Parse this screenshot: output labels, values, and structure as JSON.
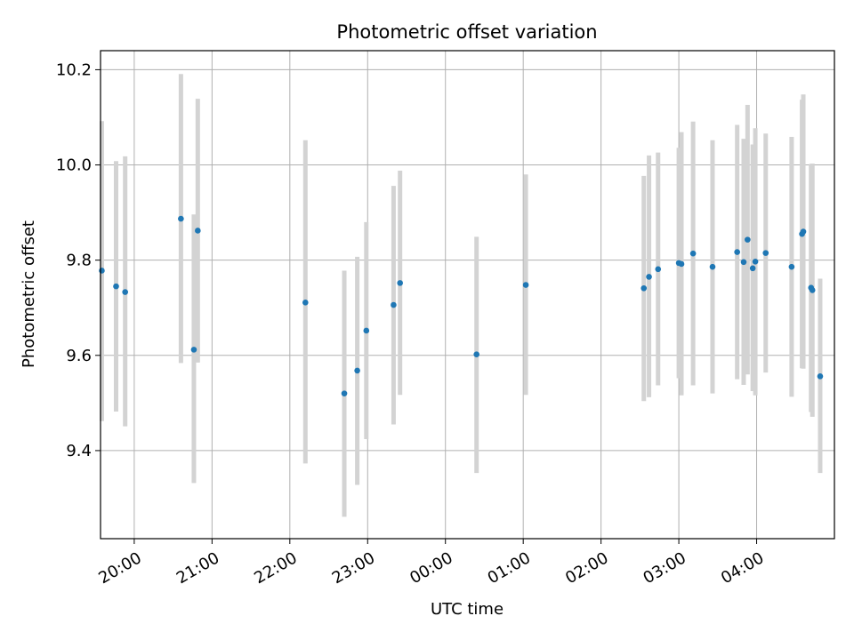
{
  "chart_data": {
    "type": "scatter",
    "title": "Photometric offset variation",
    "xlabel": "UTC time",
    "ylabel": "Photometric offset",
    "x_axis_kind": "time (hours since 19:00 UTC, wrapping past midnight)",
    "xlim": [
      "19:34",
      "05:00"
    ],
    "ylim": [
      9.215,
      10.24
    ],
    "x_ticks": [
      "20:00",
      "21:00",
      "22:00",
      "23:00",
      "00:00",
      "01:00",
      "02:00",
      "03:00",
      "04:00"
    ],
    "y_ticks": [
      "9.4",
      "9.6",
      "9.8",
      "10.0",
      "10.2"
    ],
    "grid": true,
    "marker_color": "#1f77b4",
    "errorbar_color": "#d3d3d3",
    "points": [
      {
        "t": "19:35",
        "y": 9.778,
        "lo": 9.462,
        "hi": 10.092
      },
      {
        "t": "19:46",
        "y": 9.745,
        "lo": 9.482,
        "hi": 10.008
      },
      {
        "t": "19:53",
        "y": 9.733,
        "lo": 9.451,
        "hi": 10.018
      },
      {
        "t": "20:36",
        "y": 9.887,
        "lo": 9.584,
        "hi": 10.191
      },
      {
        "t": "20:46",
        "y": 9.612,
        "lo": 9.332,
        "hi": 9.896
      },
      {
        "t": "20:49",
        "y": 9.862,
        "lo": 9.585,
        "hi": 10.139
      },
      {
        "t": "22:12",
        "y": 9.711,
        "lo": 9.373,
        "hi": 10.052
      },
      {
        "t": "22:42",
        "y": 9.52,
        "lo": 9.261,
        "hi": 9.778
      },
      {
        "t": "22:52",
        "y": 9.568,
        "lo": 9.328,
        "hi": 9.807
      },
      {
        "t": "22:59",
        "y": 9.652,
        "lo": 9.424,
        "hi": 9.88
      },
      {
        "t": "23:20",
        "y": 9.706,
        "lo": 9.455,
        "hi": 9.956
      },
      {
        "t": "23:25",
        "y": 9.752,
        "lo": 9.517,
        "hi": 9.988
      },
      {
        "t": "00:24",
        "y": 9.602,
        "lo": 9.353,
        "hi": 9.849
      },
      {
        "t": "01:02",
        "y": 9.748,
        "lo": 9.517,
        "hi": 9.98
      },
      {
        "t": "02:33",
        "y": 9.741,
        "lo": 9.504,
        "hi": 9.977
      },
      {
        "t": "02:37",
        "y": 9.765,
        "lo": 9.512,
        "hi": 10.02
      },
      {
        "t": "02:44",
        "y": 9.781,
        "lo": 9.537,
        "hi": 10.026
      },
      {
        "t": "03:00",
        "y": 9.794,
        "lo": 9.552,
        "hi": 10.036
      },
      {
        "t": "03:02",
        "y": 9.792,
        "lo": 9.516,
        "hi": 10.069
      },
      {
        "t": "03:11",
        "y": 9.814,
        "lo": 9.537,
        "hi": 10.091
      },
      {
        "t": "03:26",
        "y": 9.786,
        "lo": 9.52,
        "hi": 10.052
      },
      {
        "t": "03:45",
        "y": 9.817,
        "lo": 9.55,
        "hi": 10.084
      },
      {
        "t": "03:50",
        "y": 9.796,
        "lo": 9.538,
        "hi": 10.055
      },
      {
        "t": "03:53",
        "y": 9.843,
        "lo": 9.56,
        "hi": 10.126
      },
      {
        "t": "03:57",
        "y": 9.783,
        "lo": 9.525,
        "hi": 10.043
      },
      {
        "t": "03:59",
        "y": 9.797,
        "lo": 9.516,
        "hi": 10.077
      },
      {
        "t": "04:07",
        "y": 9.815,
        "lo": 9.564,
        "hi": 10.066
      },
      {
        "t": "04:27",
        "y": 9.786,
        "lo": 9.513,
        "hi": 10.059
      },
      {
        "t": "04:35",
        "y": 9.855,
        "lo": 9.573,
        "hi": 10.137
      },
      {
        "t": "04:36",
        "y": 9.86,
        "lo": 9.572,
        "hi": 10.148
      },
      {
        "t": "04:42",
        "y": 9.742,
        "lo": 9.481,
        "hi": 10.002
      },
      {
        "t": "04:43",
        "y": 9.737,
        "lo": 9.471,
        "hi": 10.003
      },
      {
        "t": "04:49",
        "y": 9.556,
        "lo": 9.353,
        "hi": 9.761
      }
    ]
  }
}
